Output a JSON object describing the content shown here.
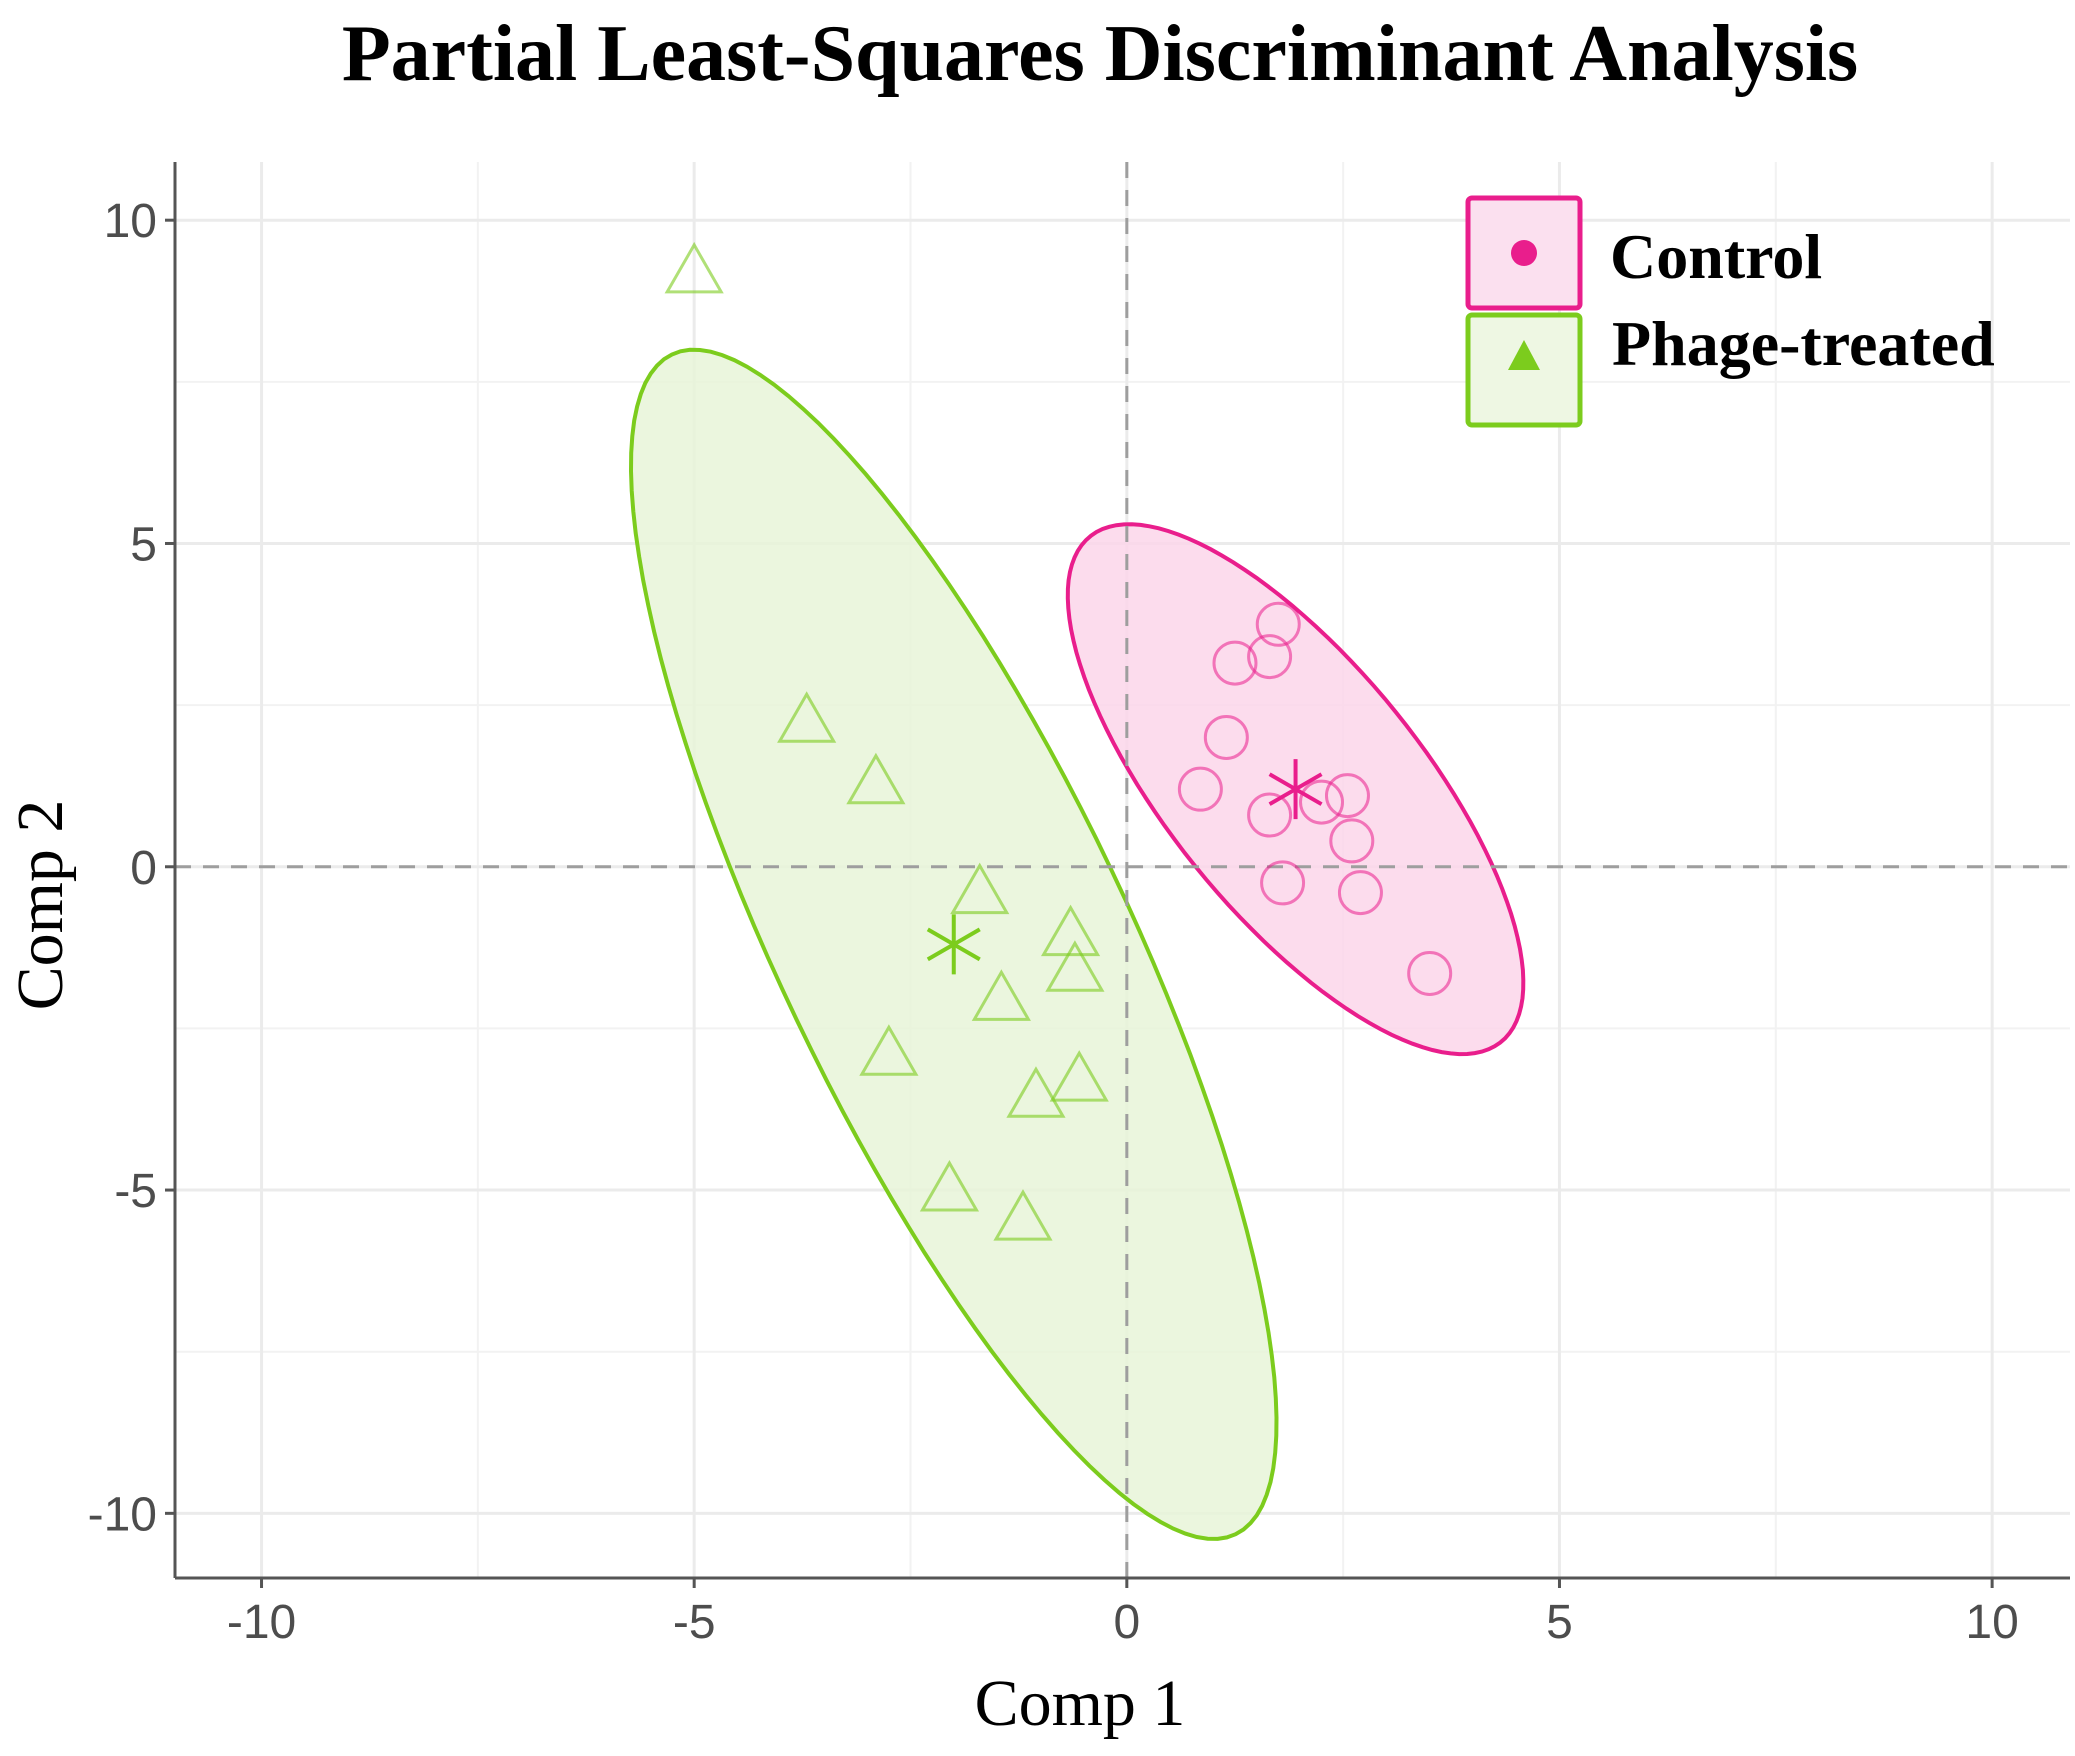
{
  "chart_data": {
    "type": "scatter",
    "title": "Partial Least-Squares Discriminant Analysis",
    "xlabel": "Comp 1",
    "ylabel": "Comp 2",
    "xlim": [
      -11,
      10.9
    ],
    "ylim": [
      -11,
      10.9
    ],
    "xticks": [
      -10,
      -5,
      0,
      5,
      10
    ],
    "yticks": [
      -10,
      -5,
      0,
      5,
      10
    ],
    "xtick_labels": [
      "-10",
      "-5",
      "0",
      "5",
      "10"
    ],
    "ytick_labels": [
      "-10",
      "-5",
      "0",
      "5",
      "10"
    ],
    "grid": true,
    "reference_lines": {
      "x": 0,
      "y": 0,
      "style": "dashed"
    },
    "legend_position": "top-right",
    "series": [
      {
        "name": "Control",
        "marker": "circle",
        "color": "#e91e8c",
        "fill": "#fcd6ea",
        "points": [
          [
            1.75,
            3.75
          ],
          [
            1.25,
            3.15
          ],
          [
            1.65,
            3.25
          ],
          [
            1.15,
            2.0
          ],
          [
            0.85,
            1.2
          ],
          [
            2.55,
            1.1
          ],
          [
            2.25,
            1.0
          ],
          [
            1.65,
            0.8
          ],
          [
            2.6,
            0.4
          ],
          [
            1.8,
            -0.25
          ],
          [
            2.7,
            -0.4
          ],
          [
            3.5,
            -1.65
          ]
        ],
        "centroid": [
          1.95,
          1.2
        ],
        "ellipse": {
          "center": [
            1.95,
            1.2
          ],
          "semi_major": 4.6,
          "semi_minor": 1.6,
          "angle_deg": -61
        }
      },
      {
        "name": "Phage-treated",
        "marker": "triangle",
        "color": "#7ccc1d",
        "fill": "#e8f5d8",
        "points": [
          [
            -5.0,
            9.2
          ],
          [
            -3.7,
            2.25
          ],
          [
            -2.9,
            1.3
          ],
          [
            -1.7,
            -0.4
          ],
          [
            -0.65,
            -1.05
          ],
          [
            -0.6,
            -1.6
          ],
          [
            -1.45,
            -2.05
          ],
          [
            -2.75,
            -2.9
          ],
          [
            -1.05,
            -3.55
          ],
          [
            -0.55,
            -3.3
          ],
          [
            -2.05,
            -5.0
          ],
          [
            -1.2,
            -5.45
          ]
        ],
        "centroid": [
          -2.0,
          -1.2
        ],
        "ellipse": {
          "center": [
            -2.0,
            -1.2
          ],
          "semi_major": 9.7,
          "semi_minor": 2.1,
          "angle_deg": -71
        }
      }
    ]
  }
}
